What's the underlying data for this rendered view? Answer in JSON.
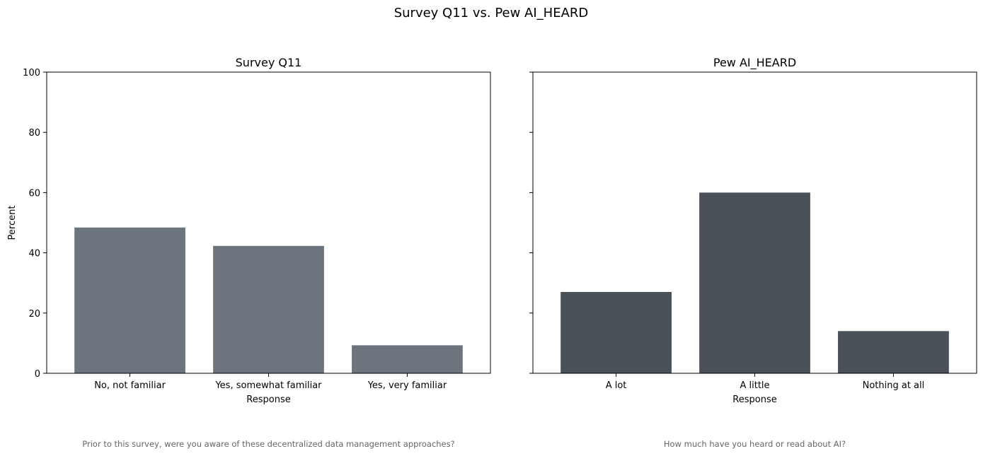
{
  "figure": {
    "suptitle": "Survey Q11 vs. Pew AI_HEARD"
  },
  "chart_data": [
    {
      "type": "bar",
      "title": "Survey Q11",
      "xlabel": "Response",
      "ylabel": "Percent",
      "ylim": [
        0,
        100
      ],
      "yticks": [
        0,
        20,
        40,
        60,
        80,
        100
      ],
      "categories": [
        "No, not familiar",
        "Yes, somewhat familiar",
        "Yes, very familiar"
      ],
      "values": [
        48.4,
        42.3,
        9.3
      ],
      "color": "#6c757d",
      "caption": "Prior to this survey, were you aware of these decentralized data management approaches?"
    },
    {
      "type": "bar",
      "title": "Pew AI_HEARD",
      "xlabel": "Response",
      "ylabel": "",
      "ylim": [
        0,
        100
      ],
      "yticks": [
        0,
        20,
        40,
        60,
        80,
        100
      ],
      "categories": [
        "A lot",
        "A little",
        "Nothing at all"
      ],
      "values": [
        27,
        60,
        14
      ],
      "color": "#495057",
      "caption": "How much have you heard or read about AI?"
    }
  ]
}
